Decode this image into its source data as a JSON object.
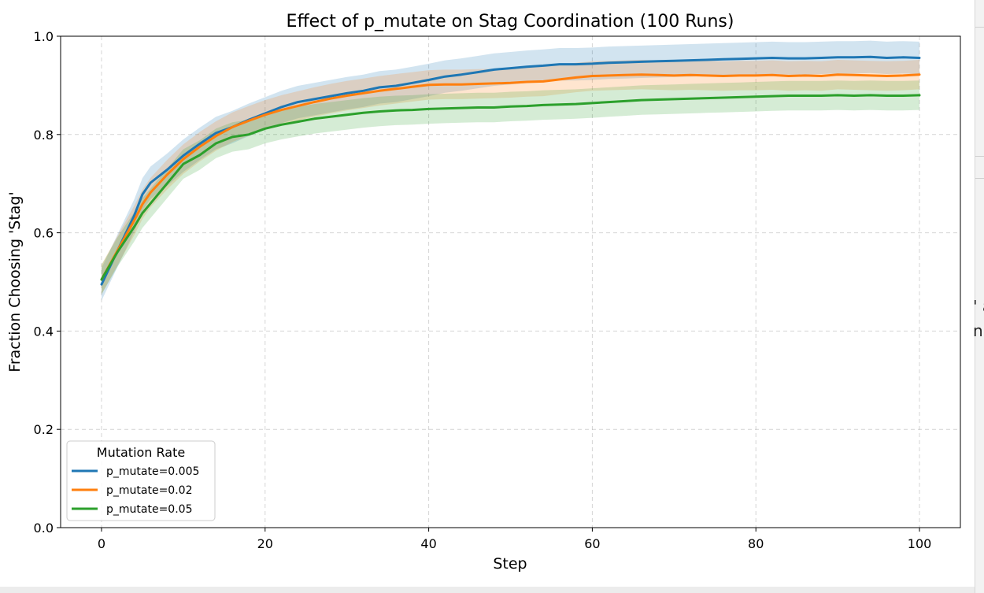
{
  "chart_data": {
    "type": "line",
    "title": "Effect of p_mutate on Stag Coordination (100 Runs)",
    "xlabel": "Step",
    "ylabel": "Fraction Choosing 'Stag'",
    "xlim": [
      -5,
      105
    ],
    "ylim": [
      0.0,
      1.0
    ],
    "xticks": [
      0,
      20,
      40,
      60,
      80,
      100
    ],
    "yticks": [
      0.0,
      0.2,
      0.4,
      0.6,
      0.8,
      1.0
    ],
    "xtick_labels": [
      "0",
      "20",
      "40",
      "60",
      "80",
      "100"
    ],
    "ytick_labels": [
      "0.0",
      "0.2",
      "0.4",
      "0.6",
      "0.8",
      "1.0"
    ],
    "grid": true,
    "legend": {
      "title": "Mutation Rate",
      "placement": "lower-left"
    },
    "series": [
      {
        "name": "p_mutate=0.005",
        "color": "#1f77b4",
        "band_halfwidth": 0.033,
        "x": [
          0,
          2,
          4,
          5,
          6,
          8,
          10,
          12,
          14,
          16,
          18,
          20,
          22,
          24,
          26,
          28,
          30,
          32,
          34,
          36,
          38,
          40,
          42,
          44,
          46,
          48,
          50,
          52,
          54,
          56,
          58,
          60,
          62,
          64,
          66,
          68,
          70,
          72,
          74,
          76,
          78,
          80,
          82,
          84,
          86,
          88,
          90,
          92,
          94,
          96,
          98,
          100
        ],
        "values": [
          0.495,
          0.565,
          0.635,
          0.678,
          0.702,
          0.728,
          0.757,
          0.781,
          0.803,
          0.815,
          0.83,
          0.843,
          0.856,
          0.866,
          0.872,
          0.878,
          0.884,
          0.889,
          0.896,
          0.899,
          0.905,
          0.911,
          0.918,
          0.922,
          0.927,
          0.932,
          0.935,
          0.938,
          0.94,
          0.943,
          0.943,
          0.944,
          0.946,
          0.947,
          0.948,
          0.949,
          0.95,
          0.951,
          0.952,
          0.953,
          0.954,
          0.955,
          0.956,
          0.955,
          0.955,
          0.956,
          0.957,
          0.957,
          0.958,
          0.956,
          0.957,
          0.956
        ]
      },
      {
        "name": "p_mutate=0.02",
        "color": "#ff7f0e",
        "band_halfwidth": 0.03,
        "x": [
          0,
          2,
          4,
          5,
          6,
          8,
          10,
          12,
          14,
          16,
          18,
          20,
          22,
          24,
          26,
          28,
          30,
          32,
          34,
          36,
          38,
          40,
          42,
          44,
          46,
          48,
          50,
          52,
          54,
          56,
          58,
          60,
          62,
          64,
          66,
          68,
          70,
          72,
          74,
          76,
          78,
          80,
          82,
          84,
          86,
          88,
          90,
          92,
          94,
          96,
          98,
          100
        ],
        "values": [
          0.505,
          0.565,
          0.625,
          0.658,
          0.682,
          0.718,
          0.75,
          0.775,
          0.797,
          0.815,
          0.828,
          0.84,
          0.85,
          0.858,
          0.866,
          0.873,
          0.879,
          0.884,
          0.889,
          0.893,
          0.897,
          0.901,
          0.902,
          0.902,
          0.903,
          0.904,
          0.905,
          0.907,
          0.908,
          0.912,
          0.916,
          0.919,
          0.92,
          0.921,
          0.922,
          0.921,
          0.92,
          0.921,
          0.92,
          0.919,
          0.92,
          0.92,
          0.921,
          0.919,
          0.92,
          0.919,
          0.922,
          0.921,
          0.92,
          0.919,
          0.92,
          0.922
        ]
      },
      {
        "name": "p_mutate=0.05",
        "color": "#2ca02c",
        "band_halfwidth": 0.03,
        "x": [
          0,
          2,
          4,
          5,
          6,
          8,
          10,
          12,
          14,
          16,
          18,
          20,
          22,
          24,
          26,
          28,
          30,
          32,
          34,
          36,
          38,
          40,
          42,
          44,
          46,
          48,
          50,
          52,
          54,
          56,
          58,
          60,
          62,
          64,
          66,
          68,
          70,
          72,
          74,
          76,
          78,
          80,
          82,
          84,
          86,
          88,
          90,
          92,
          94,
          96,
          98,
          100
        ],
        "values": [
          0.505,
          0.562,
          0.612,
          0.64,
          0.66,
          0.7,
          0.74,
          0.758,
          0.782,
          0.795,
          0.8,
          0.812,
          0.82,
          0.826,
          0.832,
          0.836,
          0.84,
          0.844,
          0.847,
          0.849,
          0.85,
          0.852,
          0.853,
          0.854,
          0.855,
          0.855,
          0.857,
          0.858,
          0.86,
          0.861,
          0.862,
          0.864,
          0.866,
          0.868,
          0.87,
          0.871,
          0.872,
          0.873,
          0.874,
          0.875,
          0.876,
          0.877,
          0.878,
          0.879,
          0.879,
          0.879,
          0.88,
          0.879,
          0.88,
          0.879,
          0.879,
          0.88
        ]
      }
    ]
  },
  "window_edge": {
    "text_lines": [
      "' a",
      "n"
    ]
  }
}
